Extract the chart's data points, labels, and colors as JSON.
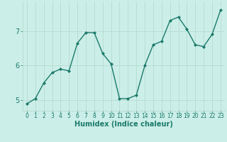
{
  "x": [
    0,
    1,
    2,
    3,
    4,
    5,
    6,
    7,
    8,
    9,
    10,
    11,
    12,
    13,
    14,
    15,
    16,
    17,
    18,
    19,
    20,
    21,
    22,
    23
  ],
  "y": [
    4.9,
    5.05,
    5.5,
    5.8,
    5.9,
    5.85,
    6.65,
    6.95,
    6.95,
    6.35,
    6.05,
    5.05,
    5.05,
    5.15,
    6.0,
    6.6,
    6.7,
    7.3,
    7.4,
    7.05,
    6.6,
    6.55,
    6.9,
    7.6
  ],
  "line_color": "#1a7a6a",
  "bg_color": "#cceee8",
  "grid_color": "#b0d8cc",
  "xlabel": "Humidex (Indice chaleur)",
  "ylim": [
    4.7,
    7.85
  ],
  "xlim": [
    -0.5,
    23.5
  ],
  "yticks": [
    5,
    6,
    7
  ],
  "xticks": [
    0,
    1,
    2,
    3,
    4,
    5,
    6,
    7,
    8,
    9,
    10,
    11,
    12,
    13,
    14,
    15,
    16,
    17,
    18,
    19,
    20,
    21,
    22,
    23
  ],
  "xtick_labels": [
    "0",
    "1",
    "2",
    "3",
    "4",
    "5",
    "6",
    "7",
    "8",
    "9",
    "10",
    "11",
    "12",
    "13",
    "14",
    "15",
    "16",
    "17",
    "18",
    "19",
    "20",
    "21",
    "22",
    "23"
  ],
  "tick_color": "#1a7a6a",
  "label_color": "#1a7a6a",
  "marker": "D",
  "marker_size": 2.0,
  "linewidth": 1.0,
  "font_size_xlabel": 7.0,
  "font_size_tick": 5.5,
  "font_size_ytick": 7.0
}
